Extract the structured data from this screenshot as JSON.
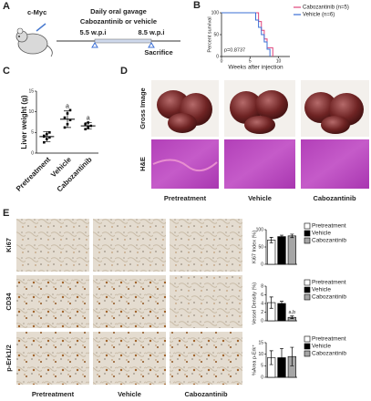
{
  "panels": {
    "A": {
      "label": "A",
      "mouse_label": "c-Myc",
      "treatment": "Daily oral gavage",
      "drugs": "Cabozantinib or vehicle",
      "start": "5.5 w.p.i",
      "end": "8.5 w.p.i",
      "end_note": "Sacrifice"
    },
    "D": {
      "label": "D",
      "rows": [
        "Gross Image",
        "H&E"
      ],
      "columns": [
        "Pretreatment",
        "Vehicle",
        "Cabozantinib"
      ]
    },
    "E": {
      "label": "E",
      "rows": [
        "Ki67",
        "CD34",
        "p-Erk1/2"
      ],
      "columns": [
        "Pretreatment",
        "Vehicle",
        "Cabozantinib"
      ]
    }
  },
  "chart_data": [
    {
      "type": "line",
      "label": "B",
      "ylabel": "Percent survival",
      "xlabel": "Weeks after injection",
      "annotation": "p=0.8737",
      "xlim": [
        0,
        12
      ],
      "xticks": [
        0,
        5,
        10
      ],
      "ylim": [
        0,
        100
      ],
      "yticks": [
        0,
        50,
        100
      ],
      "series": [
        {
          "name": "Cabozantinib (n=5)",
          "color": "#e0457b",
          "x": [
            0,
            6.5,
            6.5,
            7,
            7,
            7.5,
            7.5,
            8,
            8,
            9,
            9
          ],
          "values": [
            100,
            100,
            80,
            80,
            60,
            60,
            40,
            40,
            20,
            20,
            0
          ]
        },
        {
          "name": "Vehicle (n=6)",
          "color": "#3b6fd6",
          "x": [
            0,
            6,
            6,
            6.5,
            6.5,
            7,
            7,
            7.5,
            7.5,
            8,
            8,
            8.5,
            8.5
          ],
          "values": [
            100,
            100,
            83.3,
            83.3,
            66.7,
            66.7,
            50,
            50,
            33.3,
            33.3,
            16.7,
            16.7,
            0
          ]
        }
      ]
    },
    {
      "type": "dot",
      "label": "C",
      "ylabel": "Liver weight (g)",
      "categories": [
        "Pretreatment",
        "Vehicle",
        "Cabozantinib"
      ],
      "ylim": [
        0,
        15
      ],
      "yticks": [
        0,
        5,
        10,
        15
      ],
      "color": "#000000",
      "points": [
        [
          2.6,
          3.4,
          3.8,
          4.2,
          4.6,
          5.0,
          4.0
        ],
        [
          6.2,
          7.0,
          8.0,
          8.6,
          9.6,
          10.4
        ],
        [
          5.8,
          6.2,
          6.6,
          7.0,
          7.4
        ]
      ],
      "means": [
        4.0,
        8.2,
        6.6
      ],
      "errors": [
        1.2,
        2.0,
        0.8
      ],
      "annotations": [
        null,
        "a",
        "a"
      ]
    },
    {
      "type": "bar",
      "ylabel": "Ki67 Index (%)",
      "categories": [
        "Pretreatment",
        "Vehicle",
        "Cabozantinib"
      ],
      "colors": [
        "#ffffff",
        "#000000",
        "#a6a6a6"
      ],
      "ylim": [
        0,
        100
      ],
      "yticks": [
        0,
        50,
        100
      ],
      "values": [
        70,
        80,
        82
      ],
      "errors": [
        8,
        4,
        5
      ],
      "annotations": [
        null,
        null,
        null
      ]
    },
    {
      "type": "bar",
      "ylabel": "Vessel Density (%)",
      "categories": [
        "Pretreatment",
        "Vehicle",
        "Cabozantinib"
      ],
      "colors": [
        "#ffffff",
        "#000000",
        "#a6a6a6"
      ],
      "ylim": [
        0,
        8
      ],
      "yticks": [
        0,
        2,
        4,
        6,
        8
      ],
      "values": [
        4.2,
        4.0,
        0.8
      ],
      "errors": [
        1.3,
        0.5,
        0.3
      ],
      "annotations": [
        null,
        null,
        "a,b"
      ]
    },
    {
      "type": "bar",
      "ylabel": "%Area p-Erk⁺",
      "categories": [
        "Pretreatment",
        "Vehicle",
        "Cabozantinib"
      ],
      "colors": [
        "#ffffff",
        "#000000",
        "#a6a6a6"
      ],
      "ylim": [
        0,
        15
      ],
      "yticks": [
        0,
        5,
        10,
        15
      ],
      "values": [
        8.5,
        8.5,
        9.0
      ],
      "errors": [
        3,
        4,
        4
      ],
      "annotations": [
        null,
        null,
        null
      ]
    }
  ]
}
